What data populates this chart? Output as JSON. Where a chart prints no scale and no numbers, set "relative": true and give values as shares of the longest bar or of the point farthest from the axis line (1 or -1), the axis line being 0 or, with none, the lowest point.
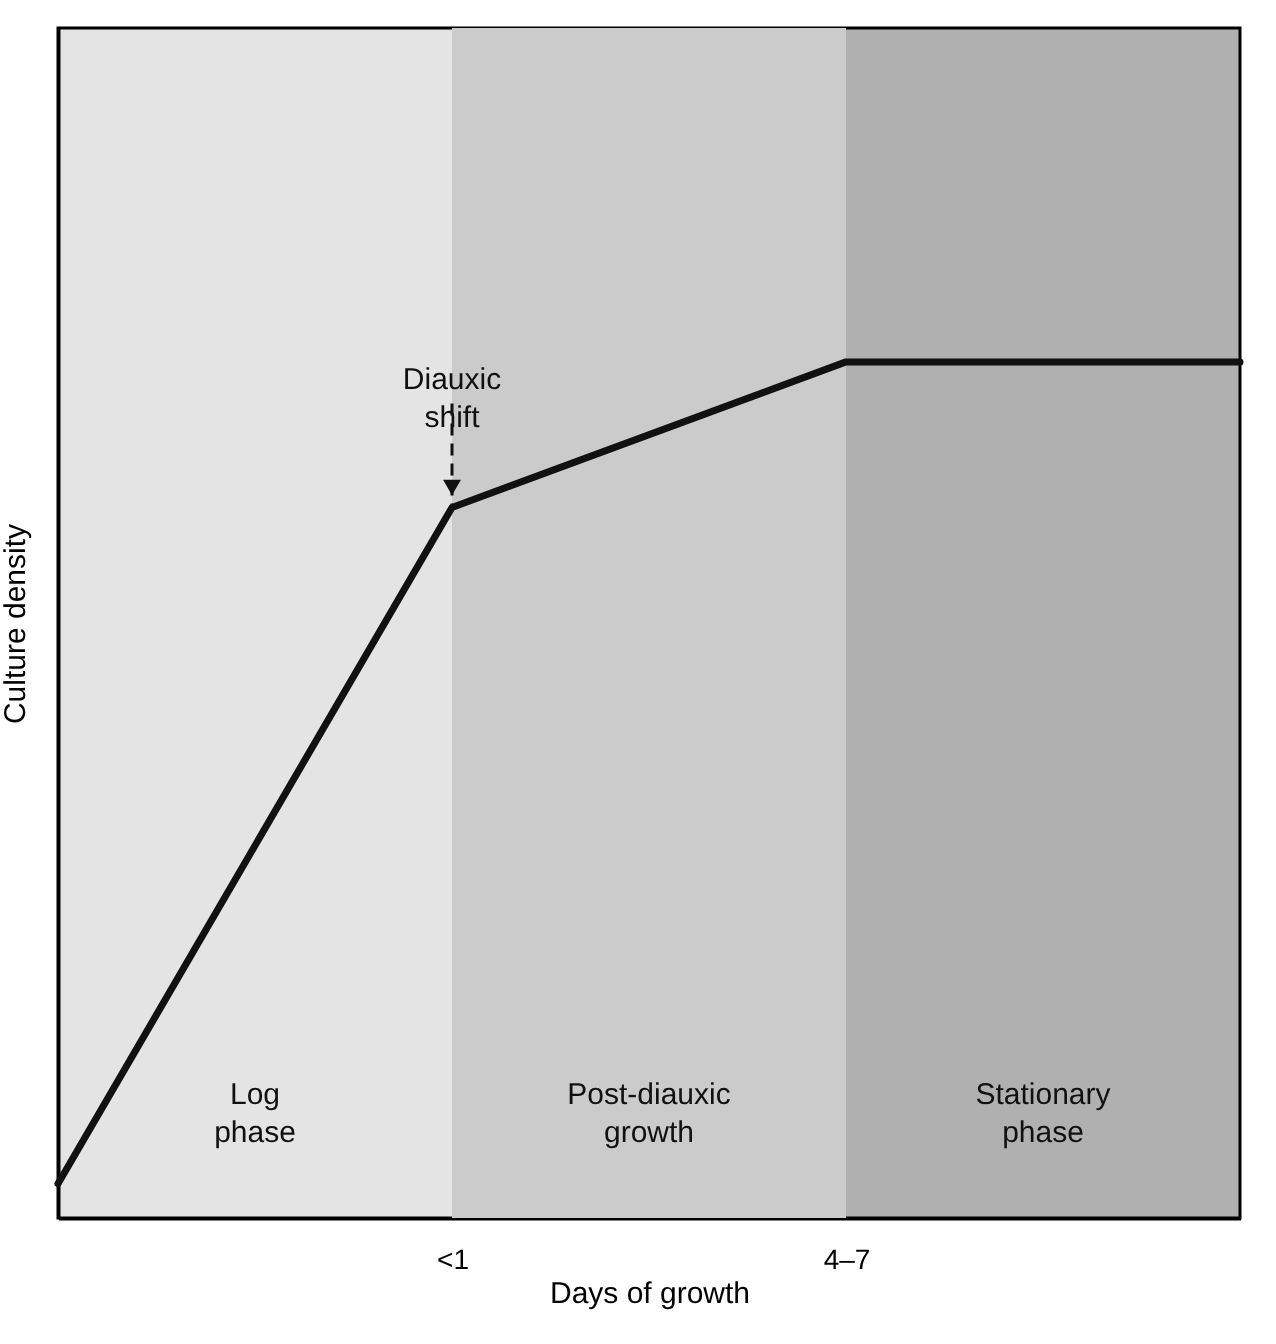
{
  "chart_data": {
    "type": "line",
    "relative": true,
    "xlabel": "Days of growth",
    "ylabel": "Culture density",
    "categories": [
      null,
      "<1",
      "4–7",
      null
    ],
    "series": [
      {
        "color": "#111111",
        "values": [
          0.04,
          0.83,
          1,
          1
        ]
      }
    ],
    "bands": [
      {
        "axis": "x",
        "from": "<1",
        "to": "4–7",
        "label": "Post-diauxic growth",
        "color": "#cbcbcb"
      }
    ],
    "annotations": [
      {
        "text": "Diauxic shift",
        "x": "<1",
        "y": 0.83
      },
      "Log phase",
      "Stationary phase"
    ],
    "grid": false,
    "tick_labels": "x",
    "marker": "none",
    "line_style": "solid"
  }
}
